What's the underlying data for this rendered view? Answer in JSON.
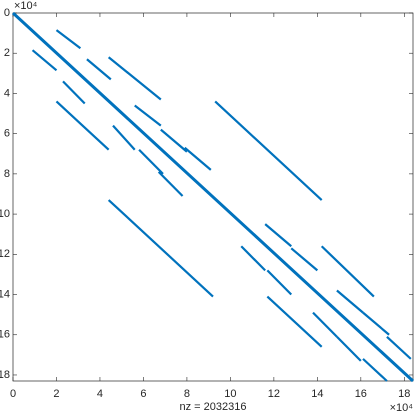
{
  "chart_data": {
    "type": "spy",
    "xlabel": "nz = 2032316",
    "x_exponent_label": "×10⁴",
    "y_exponent_label": "×10⁴",
    "color": "#0072bd",
    "xlim": [
      0,
      18.4
    ],
    "ylim": [
      0,
      18.3
    ],
    "xticks": [
      0,
      2,
      4,
      6,
      8,
      10,
      12,
      14,
      16,
      18
    ],
    "yticks": [
      0,
      2,
      4,
      6,
      8,
      10,
      12,
      14,
      16,
      18
    ],
    "y_reversed": true,
    "segments": [
      [
        0,
        0,
        18.4,
        18.3
      ],
      [
        4.4,
        2.2,
        6.8,
        4.3
      ],
      [
        9.3,
        4.4,
        14.2,
        9.3
      ],
      [
        4.4,
        9.3,
        9.2,
        14.1
      ],
      [
        14.2,
        11.6,
        16.6,
        14.1
      ],
      [
        2.0,
        4.4,
        4.4,
        6.8
      ],
      [
        11.7,
        14.1,
        14.2,
        16.6
      ],
      [
        2.0,
        0.85,
        3.1,
        1.75
      ],
      [
        0.9,
        1.85,
        2.0,
        2.85
      ],
      [
        3.4,
        2.3,
        4.5,
        3.3
      ],
      [
        2.3,
        3.4,
        3.3,
        4.5
      ],
      [
        5.6,
        4.6,
        6.8,
        5.6
      ],
      [
        4.6,
        5.6,
        5.6,
        6.8
      ],
      [
        6.8,
        5.8,
        8.0,
        6.9
      ],
      [
        5.8,
        6.8,
        6.9,
        8.0
      ],
      [
        7.9,
        6.7,
        9.1,
        7.8
      ],
      [
        6.7,
        7.9,
        7.8,
        9.1
      ],
      [
        11.6,
        10.5,
        12.8,
        11.6
      ],
      [
        10.5,
        11.6,
        11.6,
        12.8
      ],
      [
        12.8,
        11.7,
        14.0,
        12.8
      ],
      [
        11.7,
        12.8,
        12.8,
        14.0
      ],
      [
        14.9,
        13.8,
        16.1,
        14.9
      ],
      [
        13.8,
        14.9,
        14.9,
        16.1
      ],
      [
        16.1,
        14.9,
        17.3,
        16.0
      ],
      [
        14.9,
        16.1,
        16.0,
        17.3
      ],
      [
        17.2,
        16.1,
        18.3,
        17.2
      ],
      [
        16.1,
        17.2,
        17.2,
        18.3
      ]
    ]
  }
}
